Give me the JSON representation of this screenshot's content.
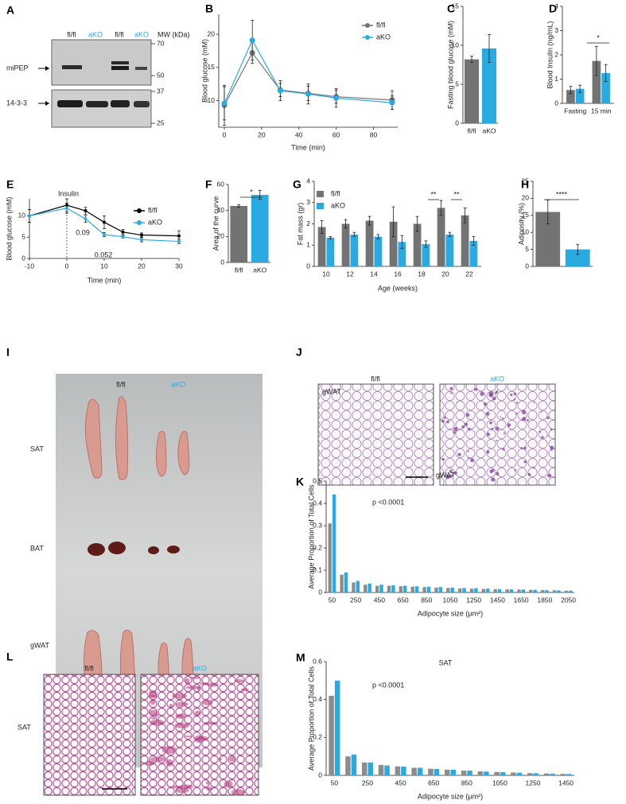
{
  "blot": {
    "panel": "A",
    "lanes": [
      "fl/fl",
      "aKO",
      "fl/fl",
      "aKO"
    ],
    "mw_title": "MW (kDa)",
    "mw": [
      70,
      50,
      37,
      25
    ],
    "bands": [
      "miPEP",
      "14-3-3"
    ]
  },
  "photo": {
    "panel": "I",
    "groups": [
      "fl/fl",
      "aKO"
    ],
    "tissues": [
      "SAT",
      "BAT",
      "gWAT"
    ]
  },
  "histology": [
    {
      "panel": "J",
      "groups": [
        "fl/fl",
        "aKO"
      ],
      "tissue": "gWAT"
    },
    {
      "panel": "L",
      "groups": [
        "fl/fl",
        "aKO"
      ],
      "tissue": "SAT"
    }
  ],
  "chart_data": [
    {
      "panel": "B",
      "type": "line",
      "ylabel": "Blood glucose (mM)",
      "xlabel": "Time (min)",
      "x": [
        0,
        15,
        30,
        45,
        60,
        90
      ],
      "xlim": [
        -3,
        93
      ],
      "xticks": [
        0,
        20,
        40,
        60,
        80
      ],
      "ylim": [
        6,
        23
      ],
      "yticks": [
        10,
        15,
        20
      ],
      "legend": "upper right",
      "series": [
        {
          "name": "fl/fl",
          "color": "#737373",
          "values": [
            9.3,
            17.2,
            11.6,
            11.1,
            10.6,
            10.1
          ],
          "errors": [
            3,
            1.6,
            1,
            1.1,
            1,
            1.4
          ]
        },
        {
          "name": "aKO",
          "color": "#29abe2",
          "values": [
            9.6,
            19.1,
            11.5,
            11,
            10.4,
            9.7
          ],
          "errors": [
            2.5,
            3,
            1.5,
            1.5,
            1.4,
            1
          ]
        }
      ]
    },
    {
      "panel": "C",
      "type": "bar",
      "ylabel": "Fasting blood glucose (mM)",
      "categories": [
        "fl/fl",
        "aKO"
      ],
      "ylim": [
        0,
        15
      ],
      "yticks": [
        0,
        5,
        10,
        15
      ],
      "series": [
        {
          "values": [
            8.2,
            9.6
          ],
          "errors": [
            0.4,
            1.8
          ],
          "colors": [
            "#737373",
            "#29abe2"
          ]
        }
      ]
    },
    {
      "panel": "D",
      "type": "bar",
      "ylabel": "Blood Insulin (ng/mL)",
      "categories": [
        "Fasting",
        "15 min"
      ],
      "ylim": [
        0,
        4
      ],
      "yticks": [
        0,
        1,
        2,
        3,
        4
      ],
      "series": [
        {
          "color": "#737373",
          "values": [
            0.55,
            1.75
          ],
          "errors": [
            0.15,
            0.6
          ]
        },
        {
          "color": "#29abe2",
          "values": [
            0.6,
            1.25
          ],
          "errors": [
            0.15,
            0.35
          ]
        }
      ],
      "annotations": [
        "*"
      ]
    },
    {
      "panel": "E",
      "type": "line",
      "ylabel": "Blood glucose (mM)",
      "xlabel": "Time (min)",
      "x": [
        -10,
        0,
        5,
        10,
        15,
        20,
        30
      ],
      "xlim": [
        -10,
        30
      ],
      "xticks": [
        -10,
        0,
        10,
        20,
        30
      ],
      "ylim": [
        0,
        14
      ],
      "yticks": [
        0,
        5,
        10
      ],
      "legend": "right",
      "series": [
        {
          "name": "fl/fl",
          "color": "#000000",
          "values": [
            10,
            12.5,
            11.2,
            8.5,
            6.2,
            5.5,
            5.3
          ],
          "errors": [
            1.5,
            1.5,
            0.8,
            1.5,
            0.6,
            0.5,
            1.2
          ]
        },
        {
          "name": "aKO",
          "color": "#29abe2",
          "values": [
            10,
            11.8,
            9.3,
            5.6,
            5.1,
            4.4,
            4
          ],
          "errors": [
            1.5,
            1.2,
            0.8,
            0.5,
            0.3,
            0.5,
            0.5
          ]
        }
      ],
      "annotations": [
        "Insulin",
        "0.09",
        "0.052"
      ]
    },
    {
      "panel": "F",
      "type": "bar",
      "ylabel": "Area of the curve",
      "categories": [
        "fl/fl",
        "aKO"
      ],
      "ylim": [
        0,
        60
      ],
      "yticks": [
        0,
        20,
        40,
        60
      ],
      "series": [
        {
          "values": [
            43.5,
            52
          ],
          "errors": [
            1,
            3.5
          ],
          "colors": [
            "#737373",
            "#29abe2"
          ]
        }
      ],
      "annotations": [
        "*"
      ]
    },
    {
      "panel": "G",
      "type": "bar",
      "ylabel": "Fat mass (gr)",
      "xlabel": "Age (weeks)",
      "categories": [
        "10",
        "12",
        "14",
        "16",
        "18",
        "20",
        "22"
      ],
      "ylim": [
        0,
        4
      ],
      "yticks": [
        0,
        1,
        2,
        3,
        4
      ],
      "legend": "upper left",
      "series": [
        {
          "name": "fl/fl",
          "color": "#737373",
          "values": [
            1.85,
            2.0,
            2.15,
            2.1,
            2.0,
            2.75,
            2.4
          ],
          "errors": [
            0.3,
            0.2,
            0.2,
            0.7,
            0.35,
            0.35,
            0.35
          ]
        },
        {
          "name": "aKO",
          "color": "#29abe2",
          "values": [
            1.35,
            1.5,
            1.4,
            1.15,
            1.05,
            1.5,
            1.2
          ],
          "errors": [
            0.05,
            0.1,
            0.1,
            0.3,
            0.15,
            0.1,
            0.2
          ]
        }
      ],
      "annotations": [
        "**",
        "**"
      ]
    },
    {
      "panel": "H",
      "type": "bar",
      "ylabel": "Adiposity (%)",
      "categories": [
        null,
        null
      ],
      "ylim": [
        0,
        25
      ],
      "yticks": [
        0,
        5,
        10,
        15,
        20,
        25
      ],
      "series": [
        {
          "values": [
            16,
            5
          ],
          "errors": [
            3.5,
            1.5
          ],
          "colors": [
            "#737373",
            "#29abe2"
          ]
        }
      ],
      "annotations": [
        "****"
      ]
    },
    {
      "panel": "K",
      "type": "bar",
      "title": "gWAT",
      "ylabel": "Average Proportion of Total Cells",
      "xlabel": "Adipocyte size (μm²)",
      "categories": [
        "50",
        null,
        "250",
        null,
        "450",
        null,
        "650",
        null,
        "850",
        null,
        "1050",
        null,
        "1250",
        null,
        "1450",
        null,
        "1650",
        null,
        "1850",
        null,
        "2050"
      ],
      "ylim": [
        0,
        0.5
      ],
      "yticks": [
        0,
        0.1,
        0.2,
        0.3,
        0.4,
        0.5
      ],
      "series": [
        {
          "color": "#8c8c8c",
          "values": [
            0.31,
            0.08,
            0.045,
            0.035,
            0.03,
            0.03,
            0.028,
            0.026,
            0.024,
            0.022,
            0.02,
            0.018,
            0.017,
            0.016,
            0.015,
            0.014,
            0.013,
            0.012,
            0.011,
            0.01,
            0.008
          ]
        },
        {
          "color": "#29abe2",
          "values": [
            0.44,
            0.09,
            0.052,
            0.04,
            0.035,
            0.032,
            0.03,
            0.028,
            0.026,
            0.024,
            0.022,
            0.02,
            0.019,
            0.017,
            0.015,
            0.014,
            0.013,
            0.012,
            0.01,
            0.009,
            0.008
          ]
        }
      ],
      "annotations": [
        "p <0.0001"
      ]
    },
    {
      "panel": "M",
      "type": "bar",
      "title": "SAT",
      "ylabel": "Average Proportion of Total Cells",
      "xlabel": "Adipocyte size (μm²)",
      "categories": [
        "50",
        null,
        "250",
        null,
        "450",
        null,
        "650",
        null,
        "850",
        null,
        "1050",
        null,
        "1250",
        null,
        "1450"
      ],
      "ylim": [
        0,
        0.6
      ],
      "yticks": [
        0,
        0.2,
        0.4,
        0.6
      ],
      "series": [
        {
          "color": "#8c8c8c",
          "values": [
            0.42,
            0.1,
            0.068,
            0.055,
            0.047,
            0.04,
            0.035,
            0.03,
            0.025,
            0.021,
            0.018,
            0.015,
            0.012,
            0.01,
            0.008
          ]
        },
        {
          "color": "#29abe2",
          "values": [
            0.5,
            0.11,
            0.068,
            0.052,
            0.046,
            0.04,
            0.034,
            0.03,
            0.025,
            0.02,
            0.017,
            0.014,
            0.011,
            0.009,
            0.007
          ]
        }
      ],
      "annotations": [
        "p <0.0001"
      ]
    }
  ]
}
